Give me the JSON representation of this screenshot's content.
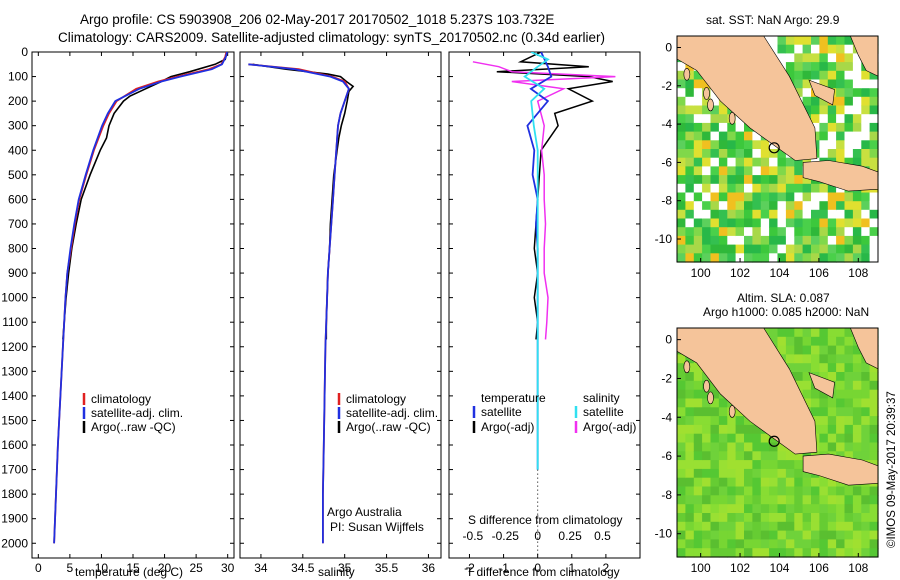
{
  "header": {
    "line1": "Argo profile: CS 5903908_206 02-May-2017 20170502_1018 5.237S 103.732E",
    "line2": "Climatology: CARS2009. Satellite-adjusted climatology: synTS_20170502.nc (0.34d earlier)"
  },
  "colors": {
    "clim": "#e02020",
    "sat": "#2030e0",
    "argo": "#000000",
    "sat_s": "#30e0f0",
    "argo_s": "#f030f0",
    "land": "#f5c49a"
  },
  "depth_axis": {
    "ylim": [
      0,
      2060
    ],
    "ticks": [
      0,
      100,
      200,
      300,
      400,
      500,
      600,
      700,
      800,
      900,
      1000,
      1100,
      1200,
      1300,
      1400,
      1500,
      1600,
      1700,
      1800,
      1900,
      2000
    ]
  },
  "chart_data": [
    {
      "type": "line",
      "title": "",
      "xlabel": "temperature (deg C)",
      "xlim": [
        -1,
        31
      ],
      "xticks": [
        0,
        5,
        10,
        15,
        20,
        25,
        30
      ],
      "legend": [
        "climatology",
        "satellite-adj. clim.",
        "Argo(..raw -QC)"
      ],
      "series": [
        {
          "name": "climatology",
          "depth": [
            0,
            20,
            50,
            70,
            100,
            120,
            150,
            200,
            250,
            300,
            400,
            500,
            600,
            700,
            800,
            900,
            1000,
            1200,
            1400,
            1600,
            1800,
            2000
          ],
          "values": [
            29.8,
            29.6,
            29.0,
            27,
            22,
            19,
            15.5,
            12.4,
            11.2,
            10.3,
            8.8,
            7.6,
            6.5,
            5.8,
            5.2,
            4.6,
            4.3,
            3.9,
            3.5,
            3.1,
            2.8,
            2.5
          ]
        },
        {
          "name": "satellite-adj. clim.",
          "depth": [
            0,
            20,
            50,
            70,
            100,
            120,
            150,
            200,
            250,
            300,
            400,
            500,
            600,
            700,
            800,
            900,
            1000,
            1200,
            1400,
            1600,
            1800,
            2000
          ],
          "values": [
            29.9,
            29.7,
            29.1,
            27.5,
            22.5,
            19.5,
            16,
            12.2,
            11,
            10.1,
            8.7,
            7.5,
            6.4,
            5.7,
            5.1,
            4.6,
            4.3,
            3.9,
            3.5,
            3.1,
            2.8,
            2.5
          ]
        },
        {
          "name": "Argo(..raw -QC)",
          "depth": [
            0,
            10,
            30,
            50,
            80,
            100,
            120,
            150,
            180,
            200,
            250,
            300,
            350,
            400,
            500,
            600,
            700,
            800,
            900,
            1000,
            1100,
            1170
          ],
          "values": [
            29.9,
            29.8,
            29.6,
            28,
            24,
            21,
            19.5,
            17,
            14.5,
            13.5,
            12,
            11.2,
            10.8,
            9.8,
            8.2,
            6.8,
            6.0,
            5.3,
            4.8,
            4.4,
            4.1,
            3.9
          ]
        }
      ]
    },
    {
      "type": "line",
      "xlabel": "salinity",
      "xlim": [
        33.75,
        36.15
      ],
      "xticks": [
        34,
        34.5,
        35,
        35.5,
        36
      ],
      "legend": [
        "climatology",
        "satellite-adj. clim.",
        "Argo(..raw -QC)"
      ],
      "note": [
        "Argo Australia",
        "PI: Susan Wijffels"
      ],
      "series": [
        {
          "name": "climatology",
          "depth": [
            50,
            70,
            100,
            120,
            150,
            200,
            250,
            300,
            400,
            500,
            600,
            700,
            800,
            900,
            1000,
            1200,
            1400,
            1600,
            1800,
            2000
          ],
          "values": [
            33.85,
            34.45,
            34.85,
            35.0,
            35.05,
            35.0,
            34.95,
            34.92,
            34.9,
            34.88,
            34.86,
            34.84,
            34.82,
            34.8,
            34.79,
            34.77,
            34.76,
            34.75,
            34.74,
            34.74
          ]
        },
        {
          "name": "satellite-adj. clim.",
          "depth": [
            50,
            70,
            100,
            120,
            150,
            200,
            250,
            300,
            400,
            500,
            600,
            700,
            800,
            900,
            1000,
            1200,
            1400,
            1600,
            1800,
            2000
          ],
          "values": [
            33.85,
            34.4,
            34.83,
            34.98,
            35.05,
            35.0,
            34.95,
            34.92,
            34.9,
            34.88,
            34.86,
            34.84,
            34.82,
            34.8,
            34.79,
            34.77,
            34.76,
            34.75,
            34.74,
            34.74
          ]
        },
        {
          "name": "Argo(..raw -QC)",
          "depth": [
            50,
            70,
            90,
            100,
            120,
            140,
            160,
            200,
            250,
            300,
            350,
            400,
            450,
            500,
            600,
            700,
            800,
            900,
            1000,
            1100,
            1170
          ],
          "values": [
            33.9,
            34.3,
            34.8,
            34.95,
            35.02,
            35.1,
            35.05,
            35.03,
            35.0,
            34.96,
            34.93,
            34.91,
            34.89,
            34.87,
            34.85,
            34.83,
            34.82,
            34.8,
            34.79,
            34.78,
            34.78
          ]
        }
      ]
    },
    {
      "type": "line",
      "xlabel": "T difference from climatology",
      "xlim": [
        -2.6,
        3.0
      ],
      "xticks": [
        -2,
        -1,
        0,
        1,
        2
      ],
      "top_xlabel": "S difference from climatology",
      "top_xticks": [
        "-0.5",
        "-0.25",
        "0",
        "0.25",
        "0.5"
      ],
      "legend_t_title": "temperature",
      "legend_s_title": "salinity",
      "legend_t": [
        "satellite",
        "Argo(-adj)"
      ],
      "legend_s": [
        "satellite",
        "Argo(-adj)"
      ],
      "series": [
        {
          "name": "T satellite",
          "depth": [
            0,
            30,
            60,
            100,
            150,
            200,
            300,
            400,
            500,
            600,
            700,
            800,
            1000,
            1200,
            1400,
            1600,
            1700
          ],
          "values": [
            0.1,
            0.2,
            0.3,
            0.4,
            -0.2,
            0.3,
            -0.3,
            -0.1,
            -0.15,
            0.0,
            -0.05,
            0.0,
            0.0,
            0.0,
            0.0,
            0.0,
            0.0
          ]
        },
        {
          "name": "T Argo(-adj)",
          "depth": [
            0,
            40,
            60,
            80,
            100,
            120,
            150,
            200,
            250,
            300,
            400,
            500,
            600,
            700,
            800,
            900,
            1000,
            1100,
            1170
          ],
          "values": [
            0.1,
            -0.5,
            1.5,
            -1.2,
            1.5,
            2.2,
            0.9,
            1.6,
            0.5,
            0.6,
            0.1,
            0.05,
            0.0,
            -0.05,
            -0.1,
            0.0,
            -0.1,
            0.0,
            -0.05
          ]
        },
        {
          "name": "S satellite",
          "depth": [
            0,
            30,
            60,
            100,
            150,
            200,
            300,
            400,
            500,
            600,
            800,
            1000,
            1200,
            1400,
            1600,
            1700
          ],
          "values": [
            -0.05,
            0.08,
            0.0,
            -0.1,
            0.05,
            -0.05,
            -0.03,
            0.0,
            0.0,
            0.0,
            0.0,
            0.0,
            0.0,
            0.0,
            0.0,
            0.0
          ]
        },
        {
          "name": "S Argo(-adj)",
          "depth": [
            40,
            60,
            80,
            100,
            120,
            150,
            200,
            300,
            400,
            500,
            600,
            700,
            800,
            900,
            1000,
            1100,
            1170
          ],
          "values": [
            -0.5,
            -0.3,
            -0.2,
            0.6,
            -0.2,
            0.2,
            0.0,
            0.05,
            0.03,
            0.05,
            0.05,
            0.06,
            0.05,
            0.05,
            0.08,
            0.07,
            0.06
          ]
        }
      ]
    },
    {
      "type": "heatmap",
      "title": "sat. SST: NaN Argo: 29.9",
      "xticks": [
        100,
        102,
        104,
        106,
        108
      ],
      "yticks": [
        0,
        -2,
        -4,
        -6,
        -8,
        -10
      ],
      "xlim": [
        98.8,
        109
      ],
      "ylim": [
        -11.2,
        0.6
      ]
    },
    {
      "type": "heatmap",
      "title": "Altim. SLA: 0.087",
      "subtitle": "Argo h1000: 0.085 h2000: NaN",
      "xticks": [
        100,
        102,
        104,
        106,
        108
      ],
      "yticks": [
        0,
        -2,
        -4,
        -6,
        -8,
        -10
      ],
      "xlim": [
        98.8,
        109
      ],
      "ylim": [
        -11.2,
        0.6
      ]
    }
  ],
  "float_position": {
    "lon": 103.732,
    "lat": -5.237
  },
  "watermark": "©IMOS 09-May-2017 20:39:37"
}
